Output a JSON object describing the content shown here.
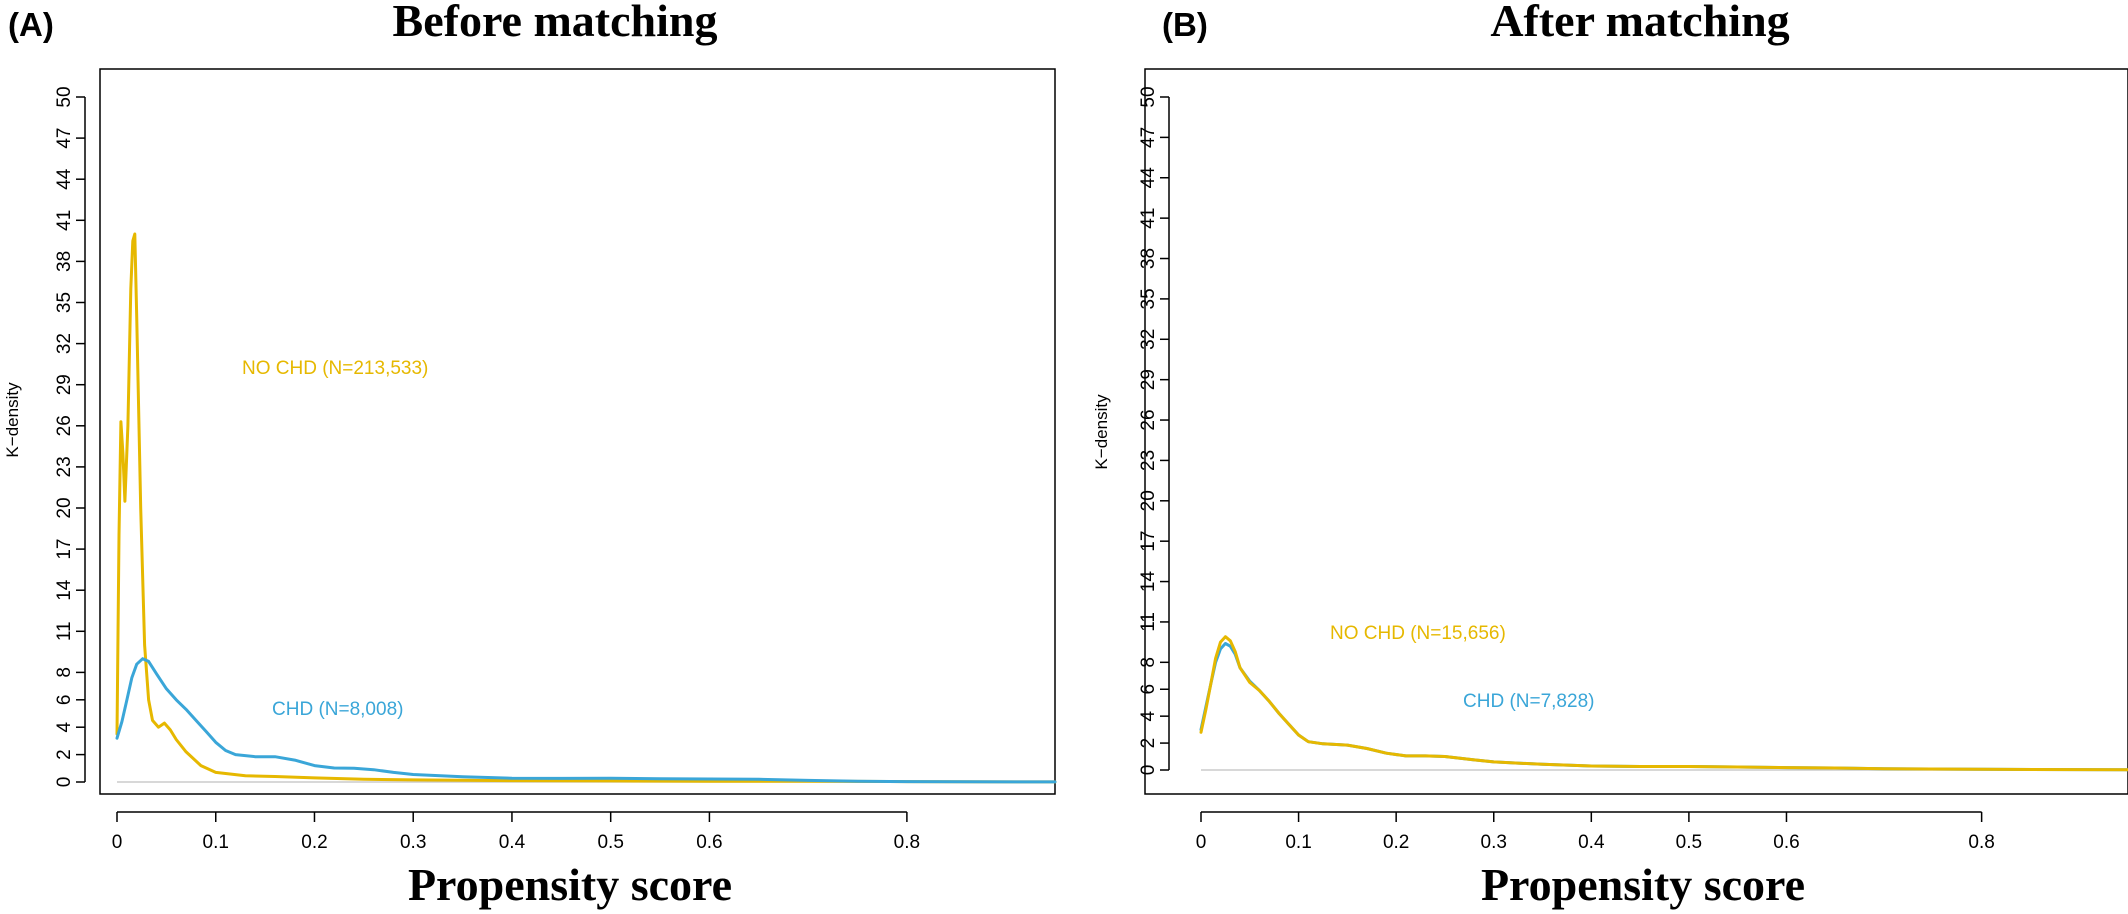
{
  "colors": {
    "no_chd": "#E6B800",
    "chd": "#3AA6D8",
    "baseline": "#cccccc",
    "axis": "#000000"
  },
  "chart_data": [
    {
      "type": "line",
      "panel_label": "(A)",
      "title": "Before matching",
      "xlabel": "Propensity score",
      "ylabel": "K−density",
      "xlim": [
        0,
        0.95
      ],
      "ylim": [
        0,
        50
      ],
      "x_ticks": [
        "0",
        "0.1",
        "0.2",
        "0.3",
        "0.4",
        "0.5",
        "0.6",
        "0.8"
      ],
      "y_ticks": [
        "0",
        "2",
        "4",
        "6",
        "8",
        "11",
        "14",
        "17",
        "20",
        "23",
        "26",
        "29",
        "32",
        "35",
        "38",
        "41",
        "44",
        "47",
        "50"
      ],
      "grid": false,
      "series": [
        {
          "name": "NO CHD (N=213,533)",
          "color_key": "no_chd",
          "points": [
            [
              0.0,
              3.5
            ],
            [
              0.002,
              18
            ],
            [
              0.004,
              26.3
            ],
            [
              0.006,
              24
            ],
            [
              0.008,
              20.5
            ],
            [
              0.011,
              26
            ],
            [
              0.014,
              36
            ],
            [
              0.016,
              39.5
            ],
            [
              0.018,
              40
            ],
            [
              0.02,
              34
            ],
            [
              0.024,
              20
            ],
            [
              0.028,
              10
            ],
            [
              0.032,
              6
            ],
            [
              0.036,
              4.5
            ],
            [
              0.042,
              4
            ],
            [
              0.048,
              4.3
            ],
            [
              0.054,
              3.8
            ],
            [
              0.06,
              3.1
            ],
            [
              0.07,
              2.2
            ],
            [
              0.085,
              1.2
            ],
            [
              0.1,
              0.7
            ],
            [
              0.13,
              0.45
            ],
            [
              0.16,
              0.4
            ],
            [
              0.2,
              0.3
            ],
            [
              0.25,
              0.2
            ],
            [
              0.3,
              0.15
            ],
            [
              0.4,
              0.1
            ],
            [
              0.5,
              0.08
            ],
            [
              0.6,
              0.06
            ],
            [
              0.7,
              0.05
            ],
            [
              0.8,
              0.03
            ],
            [
              0.95,
              0.01
            ]
          ]
        },
        {
          "name": "CHD (N=8,008)",
          "color_key": "chd",
          "points": [
            [
              0.0,
              3.2
            ],
            [
              0.005,
              4.4
            ],
            [
              0.01,
              6
            ],
            [
              0.015,
              7.6
            ],
            [
              0.02,
              8.6
            ],
            [
              0.026,
              9
            ],
            [
              0.032,
              8.8
            ],
            [
              0.04,
              7.9
            ],
            [
              0.05,
              6.8
            ],
            [
              0.06,
              6.0
            ],
            [
              0.07,
              5.3
            ],
            [
              0.08,
              4.5
            ],
            [
              0.09,
              3.7
            ],
            [
              0.1,
              2.9
            ],
            [
              0.11,
              2.3
            ],
            [
              0.12,
              2.0
            ],
            [
              0.14,
              1.85
            ],
            [
              0.16,
              1.85
            ],
            [
              0.18,
              1.6
            ],
            [
              0.2,
              1.2
            ],
            [
              0.22,
              1.02
            ],
            [
              0.24,
              1.0
            ],
            [
              0.26,
              0.9
            ],
            [
              0.28,
              0.7
            ],
            [
              0.3,
              0.55
            ],
            [
              0.35,
              0.38
            ],
            [
              0.4,
              0.28
            ],
            [
              0.45,
              0.26
            ],
            [
              0.5,
              0.28
            ],
            [
              0.55,
              0.24
            ],
            [
              0.6,
              0.22
            ],
            [
              0.65,
              0.2
            ],
            [
              0.7,
              0.12
            ],
            [
              0.75,
              0.05
            ],
            [
              0.8,
              0.03
            ],
            [
              0.95,
              0.01
            ]
          ]
        }
      ]
    },
    {
      "type": "line",
      "panel_label": "(B)",
      "title": "After matching",
      "xlabel": "Propensity score",
      "ylabel": "K−density",
      "xlim": [
        0,
        0.95
      ],
      "ylim": [
        0,
        50
      ],
      "x_ticks": [
        "0",
        "0.1",
        "0.2",
        "0.3",
        "0.4",
        "0.5",
        "0.6",
        "0.8"
      ],
      "y_ticks": [
        "0",
        "2",
        "4",
        "6",
        "8",
        "11",
        "14",
        "17",
        "20",
        "23",
        "26",
        "29",
        "32",
        "35",
        "38",
        "41",
        "44",
        "47",
        "50"
      ],
      "grid": false,
      "series": [
        {
          "name": "CHD (N=7,828)",
          "color_key": "chd",
          "points": [
            [
              0.0,
              3.0
            ],
            [
              0.005,
              4.7
            ],
            [
              0.01,
              6.4
            ],
            [
              0.015,
              8.0
            ],
            [
              0.02,
              9.0
            ],
            [
              0.025,
              9.4
            ],
            [
              0.03,
              9.2
            ],
            [
              0.035,
              8.6
            ],
            [
              0.04,
              7.6
            ],
            [
              0.05,
              6.6
            ],
            [
              0.06,
              5.9
            ],
            [
              0.07,
              5.1
            ],
            [
              0.08,
              4.2
            ],
            [
              0.09,
              3.4
            ],
            [
              0.1,
              2.6
            ],
            [
              0.11,
              2.1
            ],
            [
              0.125,
              1.95
            ],
            [
              0.15,
              1.85
            ],
            [
              0.17,
              1.6
            ],
            [
              0.19,
              1.25
            ],
            [
              0.21,
              1.05
            ],
            [
              0.23,
              1.05
            ],
            [
              0.25,
              1.0
            ],
            [
              0.28,
              0.75
            ],
            [
              0.3,
              0.6
            ],
            [
              0.35,
              0.42
            ],
            [
              0.4,
              0.3
            ],
            [
              0.45,
              0.26
            ],
            [
              0.5,
              0.26
            ],
            [
              0.55,
              0.22
            ],
            [
              0.6,
              0.18
            ],
            [
              0.65,
              0.15
            ],
            [
              0.7,
              0.1
            ],
            [
              0.8,
              0.05
            ],
            [
              0.95,
              0.02
            ]
          ]
        },
        {
          "name": "NO CHD (N=15,656)",
          "color_key": "no_chd",
          "points": [
            [
              0.0,
              2.8
            ],
            [
              0.005,
              4.5
            ],
            [
              0.01,
              6.4
            ],
            [
              0.015,
              8.3
            ],
            [
              0.02,
              9.5
            ],
            [
              0.025,
              9.9
            ],
            [
              0.03,
              9.6
            ],
            [
              0.035,
              8.8
            ],
            [
              0.04,
              7.6
            ],
            [
              0.05,
              6.5
            ],
            [
              0.06,
              5.9
            ],
            [
              0.07,
              5.1
            ],
            [
              0.08,
              4.2
            ],
            [
              0.09,
              3.4
            ],
            [
              0.1,
              2.6
            ],
            [
              0.11,
              2.1
            ],
            [
              0.125,
              1.95
            ],
            [
              0.15,
              1.85
            ],
            [
              0.17,
              1.6
            ],
            [
              0.19,
              1.25
            ],
            [
              0.21,
              1.05
            ],
            [
              0.23,
              1.05
            ],
            [
              0.25,
              1.0
            ],
            [
              0.28,
              0.75
            ],
            [
              0.3,
              0.6
            ],
            [
              0.35,
              0.42
            ],
            [
              0.4,
              0.3
            ],
            [
              0.45,
              0.26
            ],
            [
              0.5,
              0.26
            ],
            [
              0.55,
              0.22
            ],
            [
              0.6,
              0.18
            ],
            [
              0.65,
              0.15
            ],
            [
              0.7,
              0.1
            ],
            [
              0.8,
              0.05
            ],
            [
              0.95,
              0.02
            ]
          ]
        }
      ]
    }
  ]
}
